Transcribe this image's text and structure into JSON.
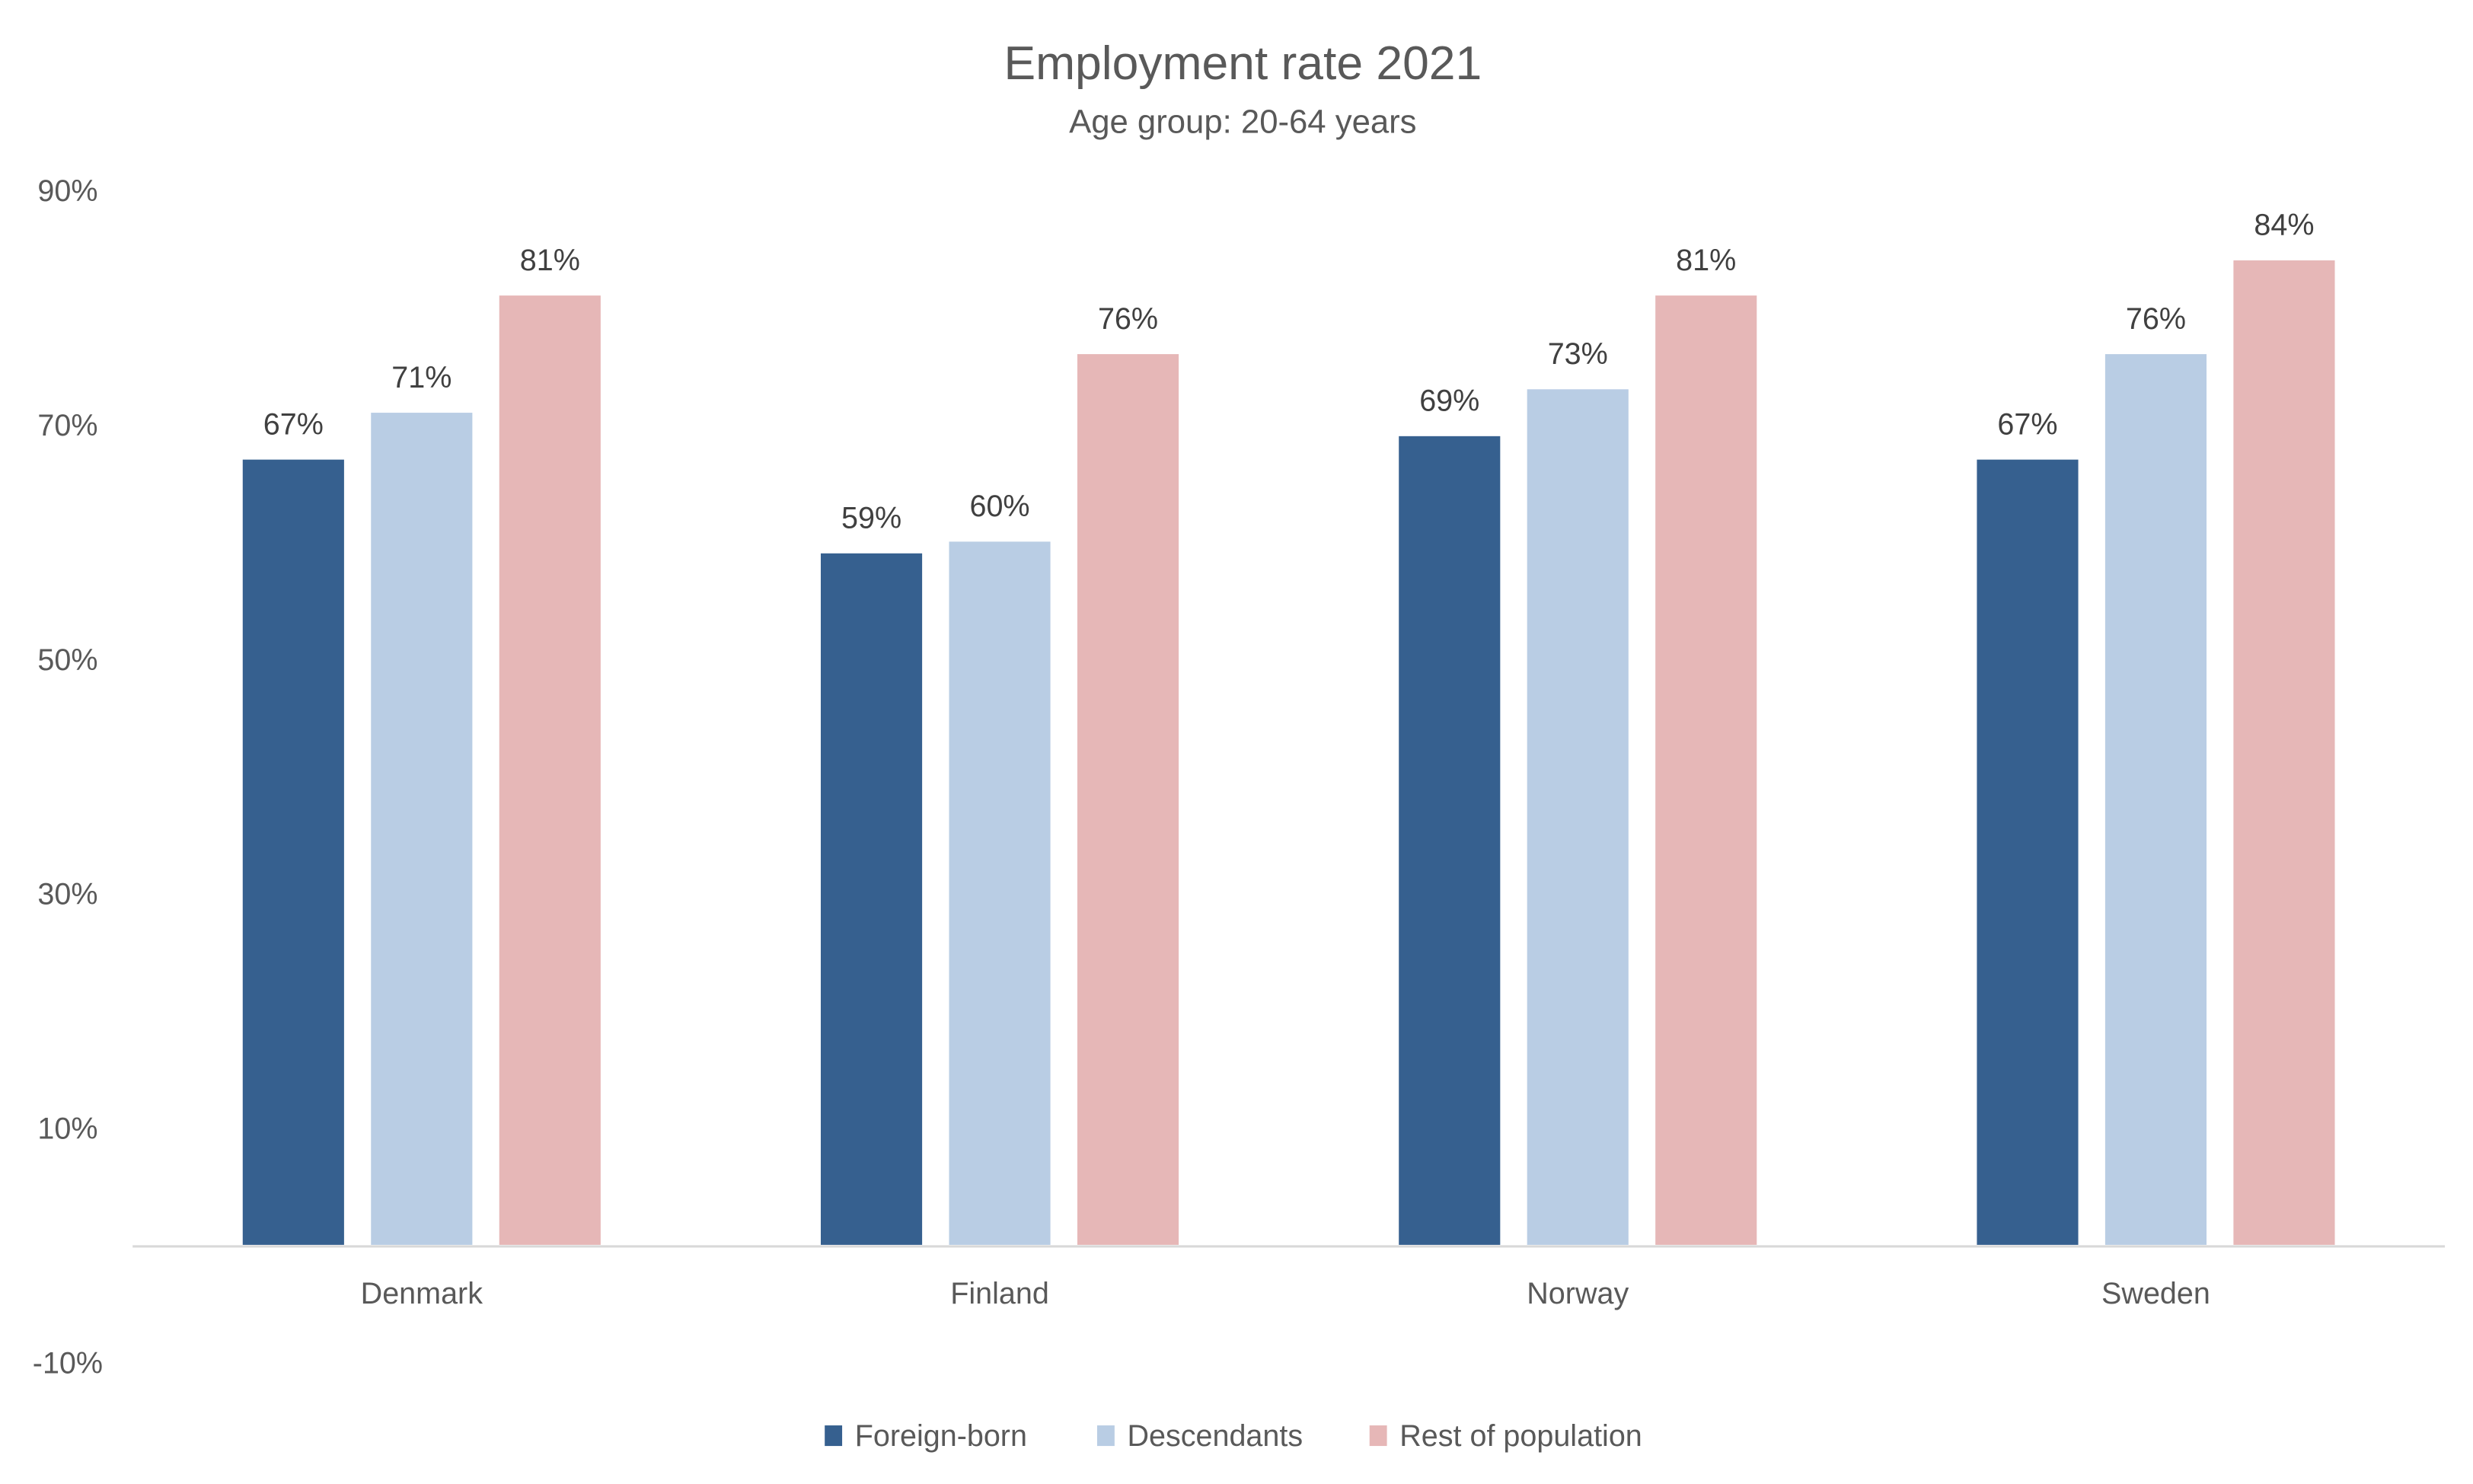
{
  "chart_data": {
    "type": "bar",
    "title": "Employment rate 2021",
    "subtitle": "Age group: 20-64 years",
    "xlabel": "",
    "ylabel": "",
    "ylim": [
      -10,
      90
    ],
    "yticks": [
      -10,
      10,
      30,
      50,
      70,
      90
    ],
    "ytick_labels": [
      "-10%",
      "10%",
      "30%",
      "50%",
      "70%",
      "90%"
    ],
    "grid": false,
    "legend_position": "bottom",
    "categories": [
      "Denmark",
      "Finland",
      "Norway",
      "Sweden"
    ],
    "series": [
      {
        "name": "Foreign-born",
        "color": "#36608F",
        "values": [
          67,
          59,
          69,
          67
        ],
        "labels": [
          "67%",
          "59%",
          "69%",
          "67%"
        ]
      },
      {
        "name": "Descendants",
        "color": "#B9CDE4",
        "values": [
          71,
          60,
          73,
          76
        ],
        "labels": [
          "71%",
          "60%",
          "73%",
          "76%"
        ]
      },
      {
        "name": "Rest of population",
        "color": "#E6B7B7",
        "values": [
          81,
          76,
          81,
          84
        ],
        "labels": [
          "81%",
          "76%",
          "81%",
          "84%"
        ]
      }
    ]
  }
}
